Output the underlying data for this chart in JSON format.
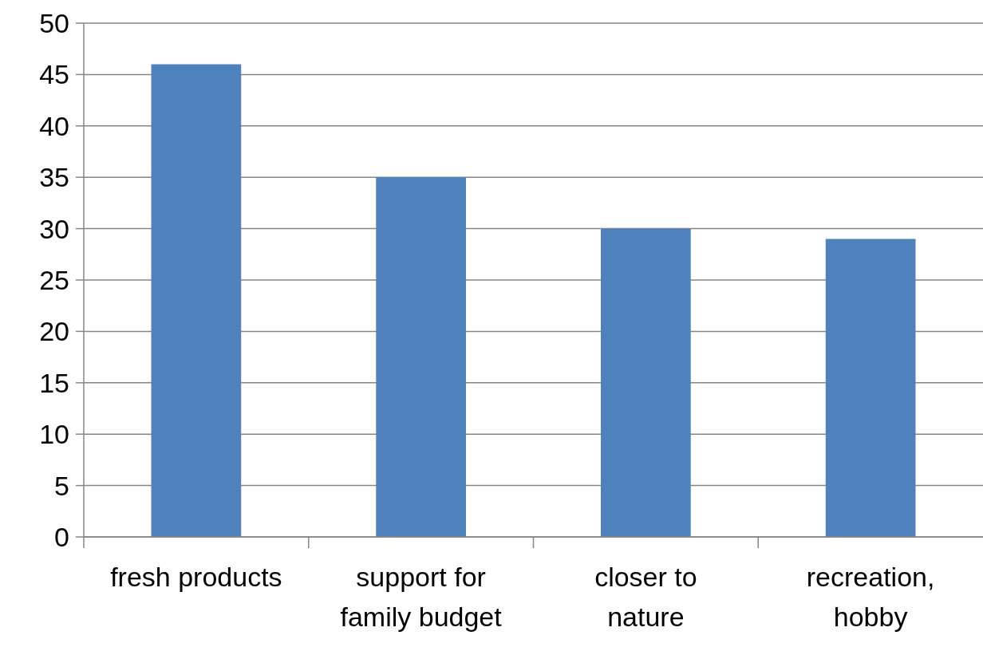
{
  "chart_data": {
    "type": "bar",
    "categories": [
      "fresh products",
      "support for family budget",
      "closer to nature",
      "recreation, hobby"
    ],
    "values": [
      46,
      35,
      30,
      29
    ],
    "color": "#4f81bd",
    "ylim": [
      0,
      50
    ],
    "yticks": [
      0,
      5,
      10,
      15,
      20,
      25,
      30,
      35,
      40,
      45,
      50
    ],
    "grid": "y"
  }
}
